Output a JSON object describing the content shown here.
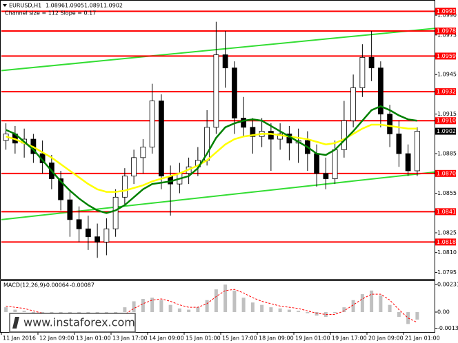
{
  "header": {
    "symbol": "EURUSD,H1",
    "ohlc": [
      1.0896,
      1.0905,
      1.0891,
      1.0902
    ],
    "channel": "Channel size = 112 Slope = 0.17"
  },
  "watermark": "www.instaforex.com",
  "chart_data": [
    {
      "type": "candlestick",
      "categories": [
        "11 Jan 2016",
        null,
        null,
        null,
        "12 Jan 09:00",
        null,
        null,
        null,
        "13 Jan 01:00",
        null,
        null,
        null,
        "13 Jan 17:00",
        null,
        null,
        null,
        "14 Jan 09:00",
        null,
        null,
        null,
        "15 Jan 01:00",
        null,
        null,
        null,
        "15 Jan 17:00",
        null,
        null,
        null,
        "18 Jan 09:00",
        null,
        null,
        null,
        "19 Jan 01:00",
        null,
        null,
        null,
        "19 Jan 17:00",
        null,
        null,
        null,
        "20 Jan 09:00",
        null,
        null,
        null,
        "21 Jan 01:00",
        null
      ],
      "open": [
        1.0895,
        1.09,
        1.0893,
        1.0896,
        1.0885,
        1.0878,
        1.0866,
        1.085,
        1.0835,
        1.0828,
        1.0822,
        1.0818,
        1.0828,
        1.0852,
        1.0868,
        1.0882,
        1.089,
        1.0925,
        1.0868,
        1.0862,
        1.087,
        1.0875,
        1.088,
        1.0905,
        1.096,
        1.095,
        1.0912,
        1.0905,
        1.0898,
        1.0902,
        1.0896,
        1.09,
        1.0893,
        1.0895,
        1.0885,
        1.087,
        1.0866,
        1.0888,
        1.091,
        1.0935,
        1.0958,
        1.095,
        1.0915,
        1.09,
        1.0885,
        1.0872
      ],
      "high": [
        1.0908,
        1.0906,
        1.0904,
        1.09,
        1.0895,
        1.0884,
        1.0872,
        1.0858,
        1.0845,
        1.0838,
        1.0832,
        1.0836,
        1.0858,
        1.0874,
        1.0888,
        1.0896,
        1.0938,
        1.093,
        1.0876,
        1.0878,
        1.0882,
        1.089,
        1.0918,
        1.0985,
        1.0978,
        1.0955,
        1.0928,
        1.0912,
        1.0912,
        1.0908,
        1.0908,
        1.0906,
        1.0904,
        1.0902,
        1.0892,
        1.0882,
        1.0895,
        1.0925,
        1.0945,
        1.0968,
        1.0978,
        1.0955,
        1.0922,
        1.091,
        1.0892,
        1.0905
      ],
      "low": [
        1.0888,
        1.0885,
        1.0882,
        1.0878,
        1.087,
        1.0858,
        1.0842,
        1.0822,
        1.0818,
        1.0812,
        1.0806,
        1.0808,
        1.0822,
        1.0846,
        1.0862,
        1.087,
        1.0885,
        1.0858,
        1.0838,
        1.0855,
        1.0862,
        1.0868,
        1.0876,
        1.09,
        1.0935,
        1.09,
        1.0898,
        1.0885,
        1.089,
        1.0872,
        1.0888,
        1.088,
        1.0878,
        1.0872,
        1.086,
        1.0858,
        1.0862,
        1.0882,
        1.0905,
        1.0928,
        1.094,
        1.0905,
        1.089,
        1.0875,
        1.0868,
        1.0868
      ],
      "close": [
        1.09,
        1.0893,
        1.0896,
        1.0885,
        1.0878,
        1.0866,
        1.085,
        1.0835,
        1.0828,
        1.0822,
        1.0818,
        1.0828,
        1.0852,
        1.0868,
        1.0882,
        1.089,
        1.0925,
        1.0868,
        1.0862,
        1.087,
        1.0875,
        1.088,
        1.0905,
        1.096,
        1.095,
        1.0912,
        1.0905,
        1.0898,
        1.0902,
        1.0896,
        1.09,
        1.0893,
        1.0895,
        1.0885,
        1.087,
        1.0866,
        1.0888,
        1.091,
        1.0935,
        1.0958,
        1.095,
        1.0915,
        1.09,
        1.0885,
        1.0872,
        1.0902
      ],
      "series": [
        {
          "color": "#ffff00",
          "values": [
            1.0898,
            1.0896,
            1.0893,
            1.089,
            1.0886,
            1.0882,
            1.0877,
            1.0872,
            1.0867,
            1.0862,
            1.0858,
            1.0856,
            1.0856,
            1.0857,
            1.0859,
            1.0861,
            1.0864,
            1.0866,
            1.0868,
            1.087,
            1.0873,
            1.0876,
            1.088,
            1.0886,
            1.0892,
            1.0896,
            1.0898,
            1.0899,
            1.09,
            1.09,
            1.0899,
            1.0898,
            1.0897,
            1.0896,
            1.0894,
            1.0892,
            1.0893,
            1.0896,
            1.09,
            1.0904,
            1.0907,
            1.0907,
            1.0906,
            1.0905,
            1.0904,
            1.0904
          ]
        },
        {
          "color": "#008000",
          "values": [
            1.0903,
            1.09,
            1.0894,
            1.0888,
            1.088,
            1.0872,
            1.0864,
            1.0857,
            1.0851,
            1.0846,
            1.0842,
            1.084,
            1.0842,
            1.0846,
            1.0852,
            1.0858,
            1.0862,
            1.0863,
            1.0864,
            1.0866,
            1.0868,
            1.0874,
            1.0885,
            1.0897,
            1.0905,
            1.0908,
            1.091,
            1.0911,
            1.091,
            1.0906,
            1.0902,
            1.0898,
            1.0894,
            1.089,
            1.0885,
            1.0884,
            1.0888,
            1.0895,
            1.0902,
            1.091,
            1.0918,
            1.0921,
            1.0918,
            1.0914,
            1.0911,
            1.091
          ]
        }
      ],
      "channels": [
        {
          "color": "#33dd33",
          "values": [
            1.0948,
            1.098
          ]
        },
        {
          "color": "#33dd33",
          "values": [
            1.0835,
            1.0871
          ]
        }
      ],
      "levels": [
        1.0993,
        1.0978,
        1.0959,
        1.0932,
        {
          "value": 1.091,
          "label": "1.0910"
        },
        {
          "value": 1.087,
          "label": "1.0870"
        },
        1.0841,
        1.0818
      ],
      "level_color": "#ff0000",
      "ylim": [
        1.079,
        1.1001
      ],
      "yticks": [
        {
          "value": 1.099,
          "label": "1.0990"
        },
        1.0975,
        1.0945,
        1.0915,
        1.0885,
        1.0855,
        1.0825,
        {
          "value": 1.081,
          "label": "1.0810"
        },
        1.0795
      ]
    },
    {
      "type": "macd",
      "title": "MACD(12,26,9)",
      "series": [
        {
          "color": "#c0c0c0",
          "values": [
            0.0004,
            0.0002,
            0.0001,
            -0.0001,
            -0.0003,
            -0.0005,
            -0.0008,
            -0.001,
            -0.0011,
            -0.001,
            -0.0009,
            -0.0007,
            -0.0002,
            0.0004,
            0.0009,
            0.0011,
            0.0012,
            0.001,
            0.0006,
            0.0003,
            0.0002,
            0.0004,
            0.001,
            0.0019,
            0.0023,
            0.0018,
            0.0012,
            0.0008,
            0.0006,
            0.0004,
            0.0003,
            0.0002,
            0.0001,
            -0.0001,
            -0.0003,
            -0.0004,
            -0.0001,
            0.0004,
            0.001,
            0.0015,
            0.0018,
            0.0014,
            0.0006,
            -0.0004,
            -0.001,
            -0.00064
          ]
        },
        {
          "color": "#ff0000",
          "values": [
            0.0005,
            0.0004,
            0.0003,
            0.0001,
            -0.0001,
            -0.0003,
            -0.0005,
            -0.0007,
            -0.0009,
            -0.001,
            -0.001,
            -0.0009,
            -0.0006,
            -0.0002,
            0.0003,
            0.0007,
            0.001,
            0.0011,
            0.0009,
            0.0006,
            0.0004,
            0.0004,
            0.0007,
            0.0013,
            0.0018,
            0.0019,
            0.0016,
            0.0012,
            0.0009,
            0.0007,
            0.0005,
            0.0004,
            0.0003,
            0.0001,
            -0.0001,
            -0.0002,
            -0.0002,
            0.0001,
            0.0006,
            0.0011,
            0.0015,
            0.0015,
            0.001,
            0.0002,
            -0.0005,
            -0.00087
          ]
        }
      ],
      "ylim": [
        -0.00167,
        0.0026
      ],
      "yticks": [
        0.00231,
        {
          "value": 0,
          "label": "0.00"
        },
        -0.00136
      ]
    }
  ]
}
